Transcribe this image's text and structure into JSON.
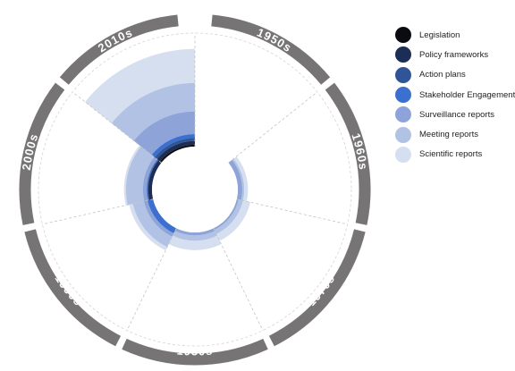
{
  "chart_data": {
    "type": "area",
    "layout": "radial",
    "categories": [
      "1950s",
      "1960s",
      "1970s",
      "1980s",
      "1990s",
      "2000s",
      "2010s"
    ],
    "series": [
      {
        "name": "Legislation",
        "color": "#0b0b12",
        "values": [
          0,
          0,
          0,
          0,
          0,
          0,
          0.05
        ]
      },
      {
        "name": "Policy frameworks",
        "color": "#1c2d56",
        "values": [
          0,
          0,
          0,
          0,
          0,
          0.1,
          0.1
        ]
      },
      {
        "name": "Action plans",
        "color": "#2f5596",
        "values": [
          0,
          0,
          0,
          0,
          0,
          0.02,
          0.08
        ]
      },
      {
        "name": "Stakeholder Engagement",
        "color": "#3b6fd0",
        "values": [
          0,
          0,
          0,
          0,
          0.15,
          0.02,
          0.1
        ]
      },
      {
        "name": "Surveillance reports",
        "color": "#8ea4d8",
        "values": [
          0,
          0.12,
          0.05,
          0.08,
          0.1,
          0.1,
          0.6
        ]
      },
      {
        "name": "Meeting reports",
        "color": "#b1c2e4",
        "values": [
          0,
          0.05,
          0.12,
          0.14,
          0.3,
          0.45,
          0.75
        ]
      },
      {
        "name": "Scientific reports",
        "color": "#d6dff0",
        "values": [
          0,
          0.1,
          0.2,
          0.25,
          0.1,
          0.05,
          0.9
        ]
      }
    ],
    "stacked": true,
    "ylim": [
      0,
      3
    ],
    "grid": true,
    "legend_position": "right"
  }
}
